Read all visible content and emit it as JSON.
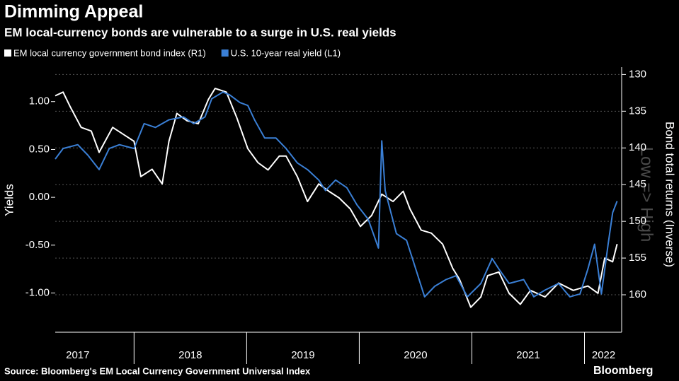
{
  "chart_data": {
    "type": "line",
    "title": "Dimming Appeal",
    "subtitle": "EM local-currency bonds are vulnerable to a surge in U.S. real yields",
    "ylabel": "Yields",
    "y2label": "Bond total returns (Inverse)",
    "annotation": "Low => High",
    "source": "Source: Bloomberg's EM Local Currency Government Universal Index",
    "logo": "Bloomberg",
    "xlim": [
      2017.3,
      2022.33
    ],
    "xticks": [
      {
        "value": 2017.5,
        "label": "2017"
      },
      {
        "value": 2018.5,
        "label": "2018"
      },
      {
        "value": 2019.5,
        "label": "2019"
      },
      {
        "value": 2020.5,
        "label": "2020"
      },
      {
        "value": 2021.5,
        "label": "2021"
      },
      {
        "value": 2022.17,
        "label": "2022"
      }
    ],
    "ylim": [
      -1.41,
      1.36
    ],
    "yticks": [
      {
        "value": -1,
        "label": "-1.00"
      },
      {
        "value": -0.5,
        "label": "-0.50"
      },
      {
        "value": 0,
        "label": "0.00"
      },
      {
        "value": 0.5,
        "label": "0.50"
      },
      {
        "value": 1,
        "label": "1.00"
      }
    ],
    "y2lim": [
      129,
      165.1
    ],
    "y2ticks": [
      130,
      135,
      140,
      145,
      150,
      155,
      160
    ],
    "y2_inverted": true,
    "grid": true,
    "series": [
      {
        "name": "EM local currency government bond index (R1)",
        "color": "#ffffff",
        "axis": "y2",
        "x": [
          2017.3,
          2017.37,
          2017.43,
          2017.53,
          2017.62,
          2017.69,
          2017.81,
          2017.91,
          2018.0,
          2018.06,
          2018.16,
          2018.25,
          2018.31,
          2018.38,
          2018.47,
          2018.57,
          2018.66,
          2018.72,
          2018.82,
          2018.91,
          2019.01,
          2019.1,
          2019.19,
          2019.29,
          2019.35,
          2019.45,
          2019.54,
          2019.64,
          2019.73,
          2019.82,
          2019.92,
          2020.01,
          2020.11,
          2020.2,
          2020.3,
          2020.39,
          2020.45,
          2020.55,
          2020.64,
          2020.74,
          2020.83,
          2020.89,
          2020.99,
          2021.08,
          2021.14,
          2021.24,
          2021.33,
          2021.43,
          2021.52,
          2021.65,
          2021.77,
          2021.9,
          2022.03,
          2022.12,
          2022.18,
          2022.25,
          2022.29
        ],
        "values": [
          132.9,
          132.4,
          134.3,
          137.2,
          137.7,
          140.6,
          137.2,
          138.2,
          139.1,
          143.9,
          142.9,
          144.9,
          139.1,
          135.3,
          136.3,
          136.7,
          133.4,
          131.9,
          132.4,
          135.8,
          140.1,
          142.0,
          143.0,
          141.1,
          141.1,
          143.9,
          147.3,
          144.9,
          145.9,
          146.8,
          148.3,
          150.7,
          149.2,
          146.3,
          147.3,
          145.9,
          148.3,
          151.2,
          151.6,
          153.1,
          156.4,
          157.9,
          161.7,
          160.3,
          157.4,
          156.9,
          159.8,
          161.3,
          159.4,
          160.3,
          158.4,
          159.4,
          158.8,
          159.8,
          155.0,
          155.5,
          153.1
        ]
      },
      {
        "name": "U.S. 10-year real yield (L1)",
        "color": "#3a7fd5",
        "x": [
          2017.3,
          2017.37,
          2017.5,
          2017.59,
          2017.69,
          2017.78,
          2017.87,
          2018.0,
          2018.09,
          2018.19,
          2018.31,
          2018.44,
          2018.53,
          2018.63,
          2018.69,
          2018.79,
          2018.85,
          2018.94,
          2019.01,
          2019.07,
          2019.16,
          2019.26,
          2019.35,
          2019.45,
          2019.54,
          2019.64,
          2019.7,
          2019.79,
          2019.89,
          2019.98,
          2020.08,
          2020.17,
          2020.2,
          2020.23,
          2020.33,
          2020.42,
          2020.48,
          2020.58,
          2020.67,
          2020.77,
          2020.86,
          2020.96,
          2021.08,
          2021.18,
          2021.24,
          2021.33,
          2021.46,
          2021.55,
          2021.65,
          2021.77,
          2021.87,
          2021.96,
          2022.03,
          2022.09,
          2022.15,
          2022.21,
          2022.25,
          2022.29
        ],
        "values": [
          0.4,
          0.51,
          0.55,
          0.44,
          0.29,
          0.51,
          0.55,
          0.51,
          0.77,
          0.73,
          0.81,
          0.84,
          0.77,
          0.84,
          1.03,
          1.1,
          1.07,
          0.99,
          0.96,
          0.81,
          0.62,
          0.62,
          0.51,
          0.36,
          0.29,
          0.18,
          0.07,
          0.18,
          0.1,
          -0.08,
          -0.23,
          -0.53,
          0.59,
          0.07,
          -0.38,
          -0.45,
          -0.67,
          -1.04,
          -0.93,
          -0.86,
          -0.82,
          -1.04,
          -0.9,
          -0.64,
          -0.75,
          -0.9,
          -0.86,
          -1.04,
          -0.97,
          -0.9,
          -1.04,
          -1.01,
          -0.75,
          -0.49,
          -1.01,
          -0.49,
          -0.16,
          -0.04
        ]
      }
    ]
  }
}
